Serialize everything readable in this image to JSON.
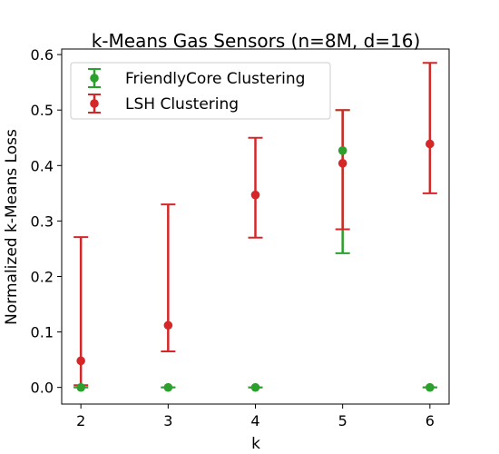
{
  "chart_data": {
    "type": "scatter",
    "title": "k-Means Gas Sensors (n=8M, d=16)",
    "xlabel": "k",
    "ylabel": "Normalized k-Means Loss",
    "x": [
      2,
      3,
      4,
      5,
      6
    ],
    "xlim": [
      1.78,
      6.22
    ],
    "ylim": [
      -0.03,
      0.61
    ],
    "xticks": [
      2,
      3,
      4,
      5,
      6
    ],
    "yticks": [
      0.0,
      0.1,
      0.2,
      0.3,
      0.4,
      0.5,
      0.6
    ],
    "ytick_labels": [
      "0.0",
      "0.1",
      "0.2",
      "0.3",
      "0.4",
      "0.5",
      "0.6"
    ],
    "grid": false,
    "legend_position": "top-left",
    "error_bars": true,
    "series": [
      {
        "name": "FriendlyCore Clustering",
        "color": "#2ca02c",
        "values": [
          0.0,
          0.0,
          0.0,
          0.427,
          0.0
        ],
        "lower": [
          0.0,
          0.0,
          0.0,
          0.242,
          0.0
        ],
        "upper": [
          0.0,
          0.0,
          0.0,
          0.5,
          0.0
        ]
      },
      {
        "name": "LSH Clustering",
        "color": "#d62728",
        "values": [
          0.048,
          0.112,
          0.347,
          0.404,
          0.439
        ],
        "lower": [
          0.004,
          0.065,
          0.27,
          0.285,
          0.35
        ],
        "upper": [
          0.271,
          0.33,
          0.45,
          0.5,
          0.585
        ]
      }
    ]
  }
}
